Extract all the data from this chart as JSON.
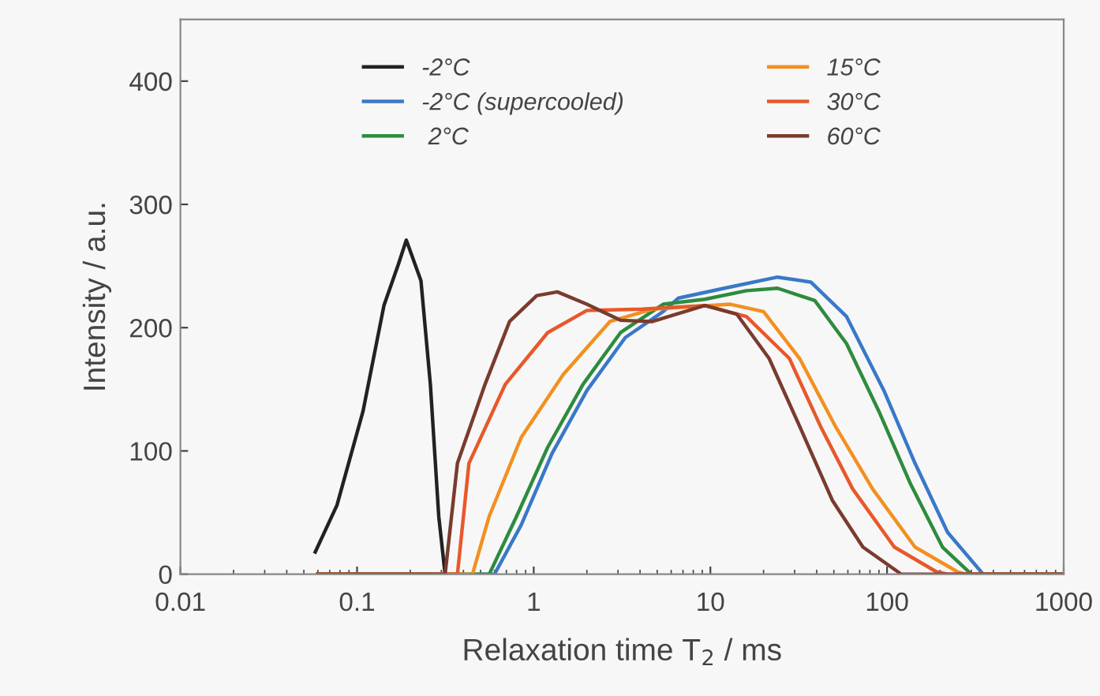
{
  "chart_data": {
    "type": "line",
    "xlabel": "Relaxation time T$_{2}$ / ms",
    "ylabel": "Intensity / a.u.",
    "log": "x",
    "xlim": [
      0.01,
      1000
    ],
    "xticks": [
      0.01,
      0.1,
      1,
      10,
      100,
      1000
    ],
    "ylim": [
      0,
      450
    ],
    "yticks": [
      0,
      100,
      200,
      300,
      400
    ],
    "grid": false,
    "legend": "top",
    "marker": "none",
    "line_style": "solid",
    "series": [
      {
        "name": "-2°C",
        "color": "#222222",
        "x": [
          0.058,
          0.077,
          0.108,
          0.142,
          0.171,
          0.19,
          0.23,
          0.26,
          0.29,
          0.315
        ],
        "values": [
          18,
          56,
          132,
          218,
          251,
          271,
          238,
          154,
          47,
          0
        ]
      },
      {
        "name": "-2°C (supercooled)",
        "color": "#3a78c8",
        "x": [
          0.06,
          0.6,
          0.85,
          1.27,
          2.0,
          3.3,
          5.4,
          6.6,
          12,
          24,
          37,
          59,
          96,
          144,
          220,
          350,
          1000
        ],
        "values": [
          0,
          0,
          40,
          98,
          149,
          192,
          213,
          224,
          232,
          241,
          237,
          209,
          149,
          90,
          34,
          0,
          0
        ]
      },
      {
        "name": " 2°C",
        "color": "#2e8b3e",
        "x": [
          0.06,
          0.56,
          0.8,
          1.2,
          1.9,
          3.1,
          5.4,
          9.3,
          16,
          24,
          39,
          59,
          90,
          136,
          206,
          300,
          1000
        ],
        "values": [
          0,
          0,
          47,
          103,
          154,
          196,
          219,
          223,
          230,
          232,
          222,
          187,
          132,
          73,
          22,
          0,
          0
        ]
      },
      {
        "name": "15°C",
        "color": "#f29020",
        "x": [
          0.06,
          0.45,
          0.56,
          0.85,
          1.47,
          2.7,
          4.7,
          13,
          20,
          32,
          51,
          83,
          144,
          250,
          280,
          1000
        ],
        "values": [
          0,
          0,
          47,
          111,
          162,
          205,
          215,
          219,
          213,
          175,
          120,
          69,
          22,
          2,
          0,
          0
        ]
      },
      {
        "name": "30°C",
        "color": "#e8582a",
        "x": [
          0.06,
          0.37,
          0.43,
          0.69,
          1.2,
          2.0,
          4.1,
          9.3,
          16,
          28,
          42,
          64,
          110,
          190,
          220,
          1000
        ],
        "values": [
          0,
          0,
          90,
          154,
          196,
          214,
          215,
          218,
          209,
          175,
          120,
          69,
          22,
          2,
          0,
          0
        ]
      },
      {
        "name": "60°C",
        "color": "#7a3b2e",
        "x": [
          0.06,
          0.315,
          0.37,
          0.53,
          0.73,
          1.04,
          1.36,
          2.0,
          3.1,
          4.7,
          9.3,
          14.1,
          21.5,
          32,
          49,
          73,
          115,
          120,
          1000
        ],
        "values": [
          0,
          0,
          90,
          154,
          205,
          226,
          229,
          219,
          206,
          205,
          218,
          211,
          175,
          120,
          60,
          22,
          2,
          0,
          0
        ]
      }
    ]
  }
}
